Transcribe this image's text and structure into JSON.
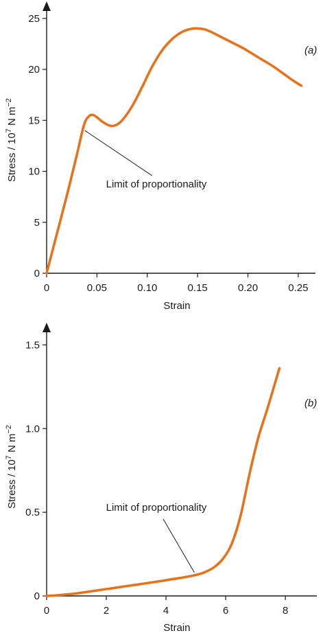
{
  "chart_data": [
    {
      "type": "line",
      "panel_label": "(a)",
      "xlabel": "Strain",
      "ylabel": "Stress / 10^7 N m^-2",
      "ylabel_parts": {
        "base": "Stress / 10",
        "exp1": "7",
        "mid": " N m",
        "exp2": "−2"
      },
      "xlim": [
        0,
        0.265
      ],
      "ylim": [
        0,
        26
      ],
      "xticks": [
        0,
        0.05,
        0.1,
        0.15,
        0.2,
        0.25
      ],
      "xtick_labels": [
        "0",
        "0.05",
        "0.10",
        "0.15",
        "0.20",
        "0.25"
      ],
      "yticks": [
        0,
        5,
        10,
        15,
        20,
        25
      ],
      "ytick_labels": [
        "0",
        "5",
        "10",
        "15",
        "20",
        "25"
      ],
      "series": [
        {
          "color": "#e8721c",
          "x": [
            0,
            0.01,
            0.02,
            0.03,
            0.037,
            0.042,
            0.047,
            0.055,
            0.062,
            0.068,
            0.075,
            0.085,
            0.095,
            0.105,
            0.115,
            0.125,
            0.135,
            0.145,
            0.152,
            0.158,
            0.165,
            0.175,
            0.185,
            0.195,
            0.205,
            0.215,
            0.225,
            0.235,
            0.245,
            0.253
          ],
          "y": [
            0,
            3.8,
            7.6,
            11.6,
            14.5,
            15.4,
            15.5,
            14.9,
            14.5,
            14.5,
            15.0,
            16.4,
            18.3,
            20.3,
            21.9,
            23.0,
            23.7,
            24.0,
            24.0,
            23.9,
            23.6,
            23.1,
            22.6,
            22.1,
            21.5,
            20.9,
            20.3,
            19.6,
            18.9,
            18.4
          ]
        }
      ],
      "annotation": {
        "text": "Limit of proportionality",
        "point": [
          0.038,
          14.0
        ],
        "text_at": [
          0.071,
          8.9
        ]
      },
      "grid": false
    },
    {
      "type": "line",
      "panel_label": "(b)",
      "xlabel": "Strain",
      "ylabel": "Stress / 10^7 N m^-2",
      "ylabel_parts": {
        "base": "Stress / 10",
        "exp1": "7",
        "mid": " N m",
        "exp2": "−2"
      },
      "xlim": [
        0,
        8.8
      ],
      "ylim": [
        0,
        1.6
      ],
      "xticks": [
        0,
        2,
        4,
        6,
        8
      ],
      "xtick_labels": [
        "0",
        "2",
        "4",
        "6",
        "8"
      ],
      "yticks": [
        0,
        0.5,
        1.0,
        1.5
      ],
      "ytick_labels": [
        "0",
        "0.5",
        "1.0",
        "1.5"
      ],
      "series": [
        {
          "color": "#e8721c",
          "x": [
            0,
            0.5,
            1,
            1.5,
            2,
            2.5,
            3,
            3.5,
            4,
            4.5,
            5,
            5.3,
            5.6,
            5.9,
            6.2,
            6.5,
            6.8,
            7.1,
            7.4,
            7.8
          ],
          "y": [
            0,
            0.006,
            0.015,
            0.028,
            0.041,
            0.054,
            0.067,
            0.08,
            0.094,
            0.108,
            0.125,
            0.142,
            0.17,
            0.22,
            0.31,
            0.48,
            0.73,
            0.95,
            1.12,
            1.36
          ]
        }
      ],
      "annotation": {
        "text": "Limit of proportionality",
        "point": [
          4.95,
          0.14
        ],
        "text_at": [
          4.0,
          0.51
        ]
      },
      "grid": false
    }
  ]
}
